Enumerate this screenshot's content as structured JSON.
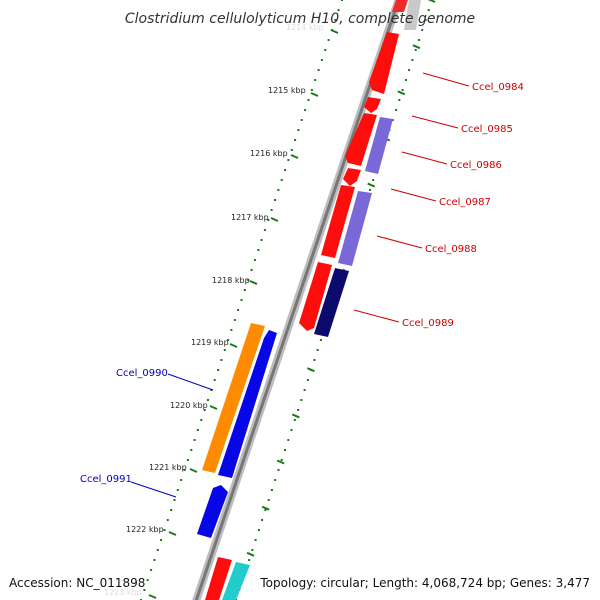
{
  "title": "Clostridium cellulolyticum H10, complete genome",
  "footer": {
    "accession": "Accession: NC_011898",
    "summary": "Topology: circular; Length: 4,068,724 bp; Genes: 3,477"
  },
  "colors": {
    "backbone": "#8a8a8a",
    "tick": "#1a7a1a",
    "label_red": "#cc0000",
    "label_blue": "#0000bb"
  },
  "kbp_labels": [
    "1214 kbp",
    "1215 kbp",
    "1216 kbp",
    "1217 kbp",
    "1218 kbp",
    "1219 kbp",
    "1220 kbp",
    "1221 kbp",
    "1222 kbp",
    "1223 kbp"
  ],
  "gene_labels": {
    "right": [
      "Ccel_0984",
      "Ccel_0985",
      "Ccel_0986",
      "Ccel_0987",
      "Ccel_0988",
      "Ccel_0989"
    ],
    "left": [
      "Ccel_0990",
      "Ccel_0991"
    ]
  }
}
